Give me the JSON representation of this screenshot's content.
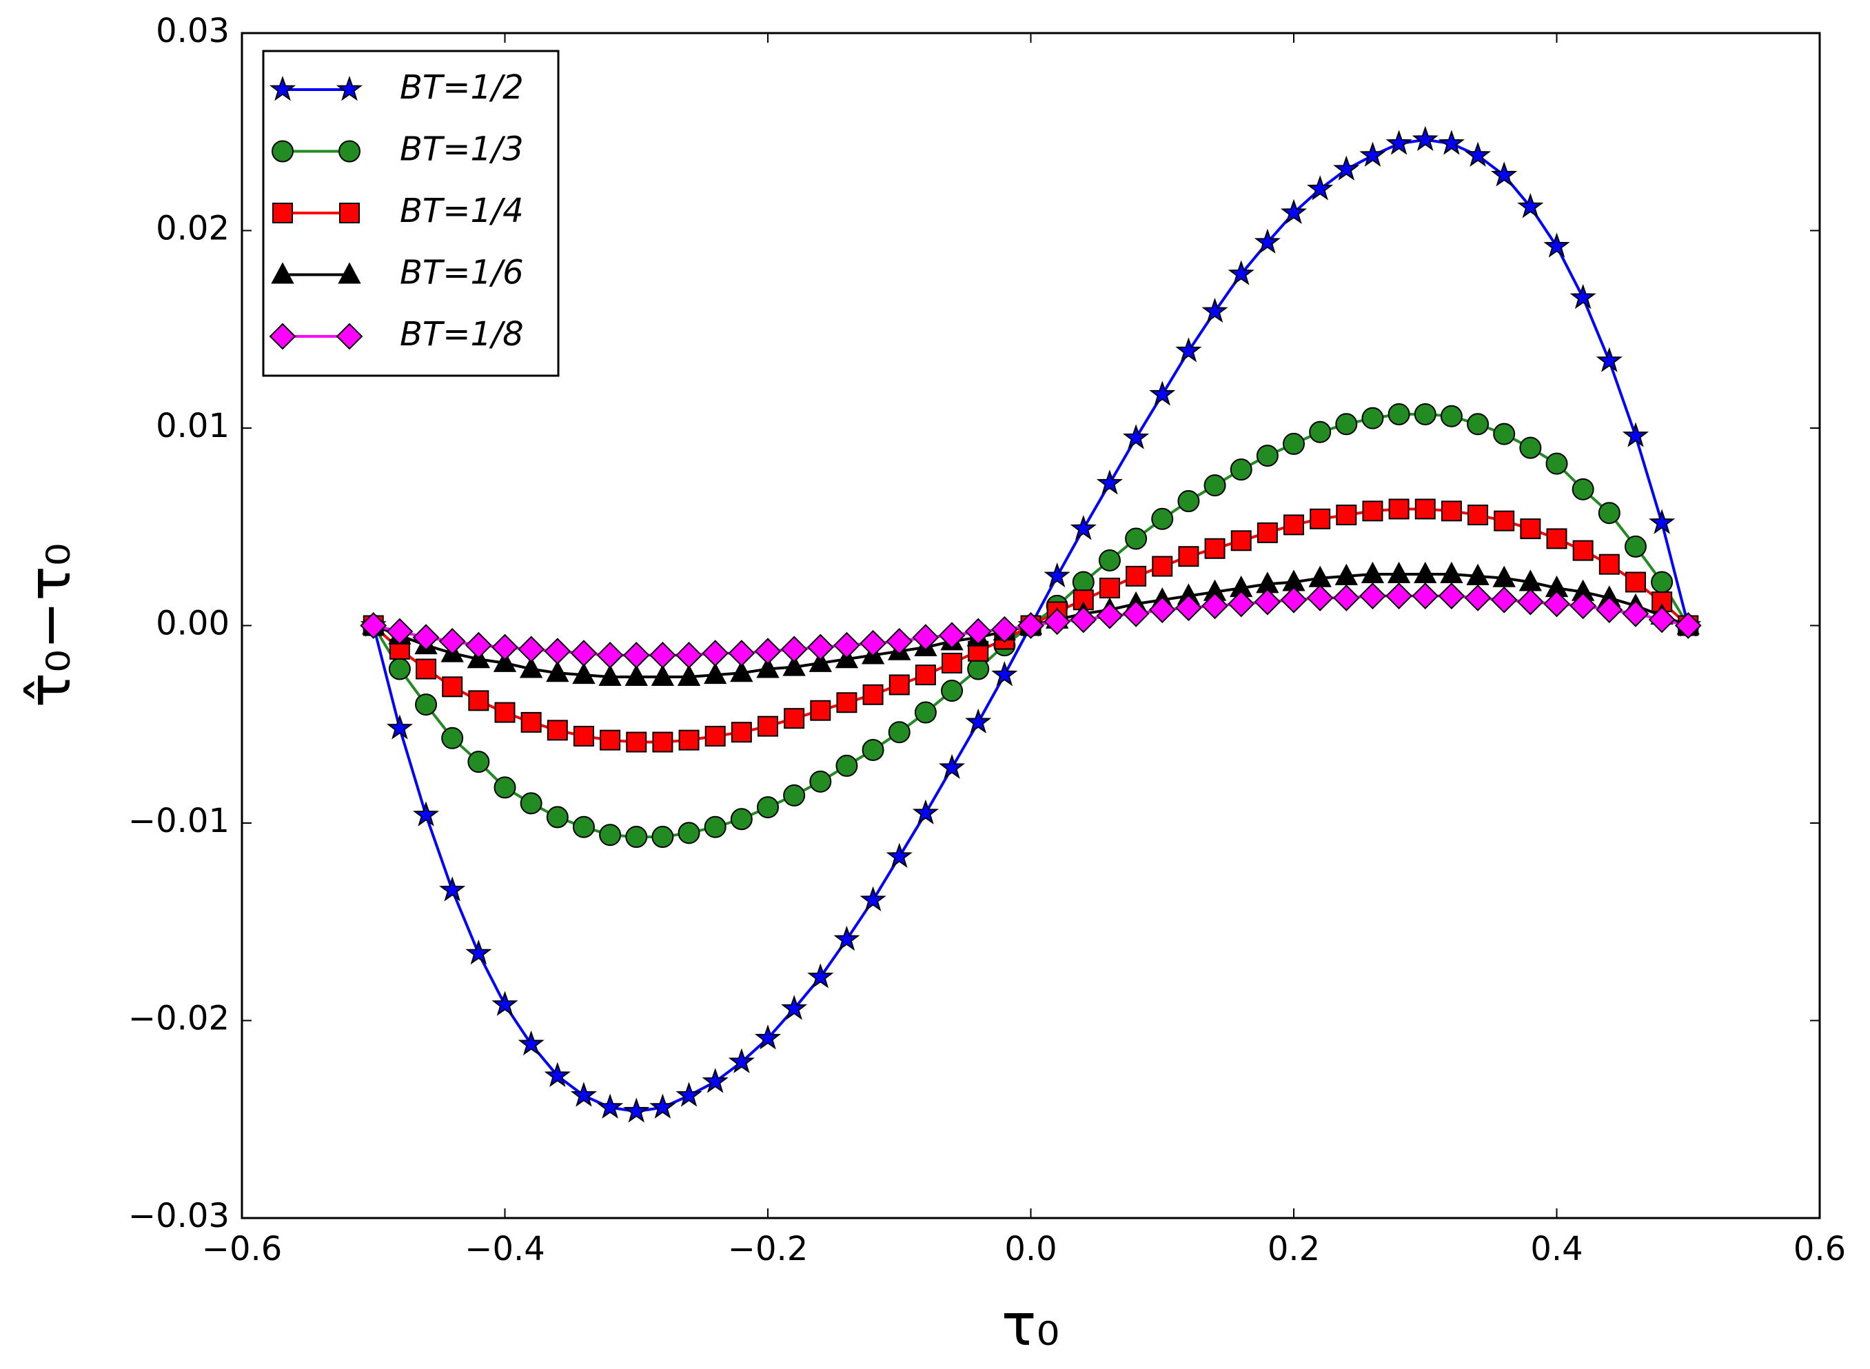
{
  "chart_data": {
    "type": "line",
    "xlabel": "τ₀",
    "ylabel": "τ̂₀−τ₀",
    "x": [
      -0.5,
      -0.48,
      -0.46,
      -0.44,
      -0.42,
      -0.4,
      -0.38,
      -0.36,
      -0.34,
      -0.32,
      -0.3,
      -0.28,
      -0.26,
      -0.24,
      -0.22,
      -0.2,
      -0.18,
      -0.16,
      -0.14,
      -0.12,
      -0.1,
      -0.08,
      -0.06,
      -0.04,
      -0.02,
      0,
      0.02,
      0.04,
      0.06,
      0.08,
      0.1,
      0.12,
      0.14,
      0.16,
      0.18,
      0.2,
      0.22,
      0.24,
      0.26,
      0.28,
      0.3,
      0.32,
      0.34,
      0.36,
      0.38,
      0.4,
      0.42,
      0.44,
      0.46,
      0.48,
      0.5
    ],
    "series": [
      {
        "name": "BT=1/2",
        "color": "#0000ff",
        "marker": "star",
        "values": [
          0,
          -0.0052,
          -0.0096,
          -0.0134,
          -0.0166,
          -0.0192,
          -0.0212,
          -0.0228,
          -0.0238,
          -0.0244,
          -0.0246,
          -0.0244,
          -0.0238,
          -0.0231,
          -0.0221,
          -0.0209,
          -0.0194,
          -0.0178,
          -0.0159,
          -0.0139,
          -0.0117,
          -0.0095,
          -0.0072,
          -0.0049,
          -0.0025,
          0,
          0.0025,
          0.0049,
          0.0072,
          0.0095,
          0.0117,
          0.0139,
          0.0159,
          0.0178,
          0.0194,
          0.0209,
          0.0221,
          0.0231,
          0.0238,
          0.0244,
          0.0246,
          0.0244,
          0.0238,
          0.0228,
          0.0212,
          0.0192,
          0.0166,
          0.0134,
          0.0096,
          0.0052,
          0
        ]
      },
      {
        "name": "BT=1/3",
        "color": "#228b22",
        "marker": "circle",
        "values": [
          0,
          -0.0022,
          -0.004,
          -0.0057,
          -0.0069,
          -0.0082,
          -0.009,
          -0.0097,
          -0.0102,
          -0.0106,
          -0.0107,
          -0.0107,
          -0.0105,
          -0.0102,
          -0.0098,
          -0.0092,
          -0.0086,
          -0.0079,
          -0.0071,
          -0.0063,
          -0.0054,
          -0.0044,
          -0.0033,
          -0.0022,
          -0.001,
          0,
          0.001,
          0.0022,
          0.0033,
          0.0044,
          0.0054,
          0.0063,
          0.0071,
          0.0079,
          0.0086,
          0.0092,
          0.0098,
          0.0102,
          0.0105,
          0.0107,
          0.0107,
          0.0106,
          0.0102,
          0.0097,
          0.009,
          0.0082,
          0.0069,
          0.0057,
          0.004,
          0.0022,
          0
        ]
      },
      {
        "name": "BT=1/4",
        "color": "#ff0000",
        "marker": "square",
        "values": [
          0,
          -0.0012,
          -0.0022,
          -0.0031,
          -0.0038,
          -0.0044,
          -0.0049,
          -0.0053,
          -0.0056,
          -0.0058,
          -0.0059,
          -0.0059,
          -0.0058,
          -0.0056,
          -0.0054,
          -0.0051,
          -0.0047,
          -0.0043,
          -0.0039,
          -0.0035,
          -0.003,
          -0.0025,
          -0.0019,
          -0.0013,
          -0.0007,
          0,
          0.0007,
          0.0013,
          0.0019,
          0.0025,
          0.003,
          0.0035,
          0.0039,
          0.0043,
          0.0047,
          0.0051,
          0.0054,
          0.0056,
          0.0058,
          0.0059,
          0.0059,
          0.0058,
          0.0056,
          0.0053,
          0.0049,
          0.0044,
          0.0038,
          0.0031,
          0.0022,
          0.0012,
          0
        ]
      },
      {
        "name": "BT=1/6",
        "color": "#000000",
        "marker": "triangle",
        "values": [
          0,
          -0.0005,
          -0.001,
          -0.0014,
          -0.0017,
          -0.0019,
          -0.0022,
          -0.0024,
          -0.0025,
          -0.0026,
          -0.0026,
          -0.0026,
          -0.0026,
          -0.0025,
          -0.0024,
          -0.0022,
          -0.0021,
          -0.0019,
          -0.0017,
          -0.0015,
          -0.0013,
          -0.0011,
          -0.0008,
          -0.0006,
          -0.0003,
          0,
          0.0003,
          0.0006,
          0.0008,
          0.0011,
          0.0013,
          0.0015,
          0.0017,
          0.0019,
          0.0021,
          0.0022,
          0.0024,
          0.0025,
          0.0026,
          0.0026,
          0.0026,
          0.0026,
          0.0025,
          0.0024,
          0.0022,
          0.0019,
          0.0017,
          0.0014,
          0.001,
          0.0005,
          0
        ]
      },
      {
        "name": "BT=1/8",
        "color": "#ff00ff",
        "marker": "diamond",
        "values": [
          0,
          -0.0003,
          -0.0006,
          -0.0008,
          -0.001,
          -0.0011,
          -0.0012,
          -0.0013,
          -0.0014,
          -0.0015,
          -0.0015,
          -0.0015,
          -0.0015,
          -0.0014,
          -0.0014,
          -0.0013,
          -0.0012,
          -0.0011,
          -0.001,
          -0.0009,
          -0.0008,
          -0.0006,
          -0.0005,
          -0.0003,
          -0.0002,
          0,
          0.0002,
          0.0003,
          0.0005,
          0.0006,
          0.0008,
          0.0009,
          0.001,
          0.0011,
          0.0012,
          0.0013,
          0.0014,
          0.0014,
          0.0015,
          0.0015,
          0.0015,
          0.0015,
          0.0014,
          0.0013,
          0.0012,
          0.0011,
          0.001,
          0.0008,
          0.0006,
          0.0003,
          0
        ]
      }
    ],
    "xlim": [
      -0.6,
      0.6
    ],
    "xticks": [
      {
        "value": -0.6,
        "label": "−0.6"
      },
      {
        "value": -0.4,
        "label": "−0.4"
      },
      {
        "value": -0.2,
        "label": "−0.2"
      },
      {
        "value": 0,
        "label": "0.0"
      },
      0.2,
      0.4,
      0.6
    ],
    "ylim": [
      -0.03,
      0.03
    ],
    "yticks": [
      {
        "value": -0.03,
        "label": "−0.03"
      },
      {
        "value": -0.02,
        "label": "−0.02"
      },
      {
        "value": -0.01,
        "label": "−0.01"
      },
      {
        "value": 0,
        "label": "0.00"
      },
      0.01,
      0.02,
      0.03
    ],
    "grid": false,
    "legend": "upper left"
  }
}
